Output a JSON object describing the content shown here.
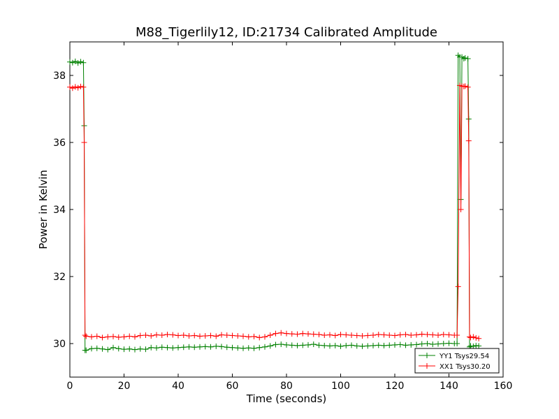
{
  "chart_data": {
    "type": "line",
    "title": "M88_Tigerlily12, ID:21734 Calibrated Amplitude",
    "xlabel": "Time (seconds)",
    "ylabel": "Power in Kelvin",
    "xlim": [
      0,
      160
    ],
    "ylim": [
      29,
      39
    ],
    "xticks": [
      0,
      20,
      40,
      60,
      80,
      100,
      120,
      140,
      160
    ],
    "yticks": [
      30,
      32,
      34,
      36,
      38
    ],
    "grid": false,
    "legend_position": "lower-right",
    "marker": "plus",
    "series": [
      {
        "name": "YY1 Tsys29.54",
        "color": "#008000",
        "x": [
          0,
          1,
          2,
          3,
          4,
          5,
          5.3,
          5.6,
          6,
          8,
          10,
          12,
          14,
          16,
          18,
          20,
          22,
          24,
          26,
          28,
          30,
          32,
          34,
          36,
          38,
          40,
          42,
          44,
          46,
          48,
          50,
          52,
          54,
          56,
          58,
          60,
          62,
          64,
          66,
          68,
          70,
          72,
          74,
          76,
          78,
          80,
          82,
          84,
          86,
          88,
          90,
          92,
          94,
          96,
          98,
          100,
          102,
          104,
          106,
          108,
          110,
          112,
          114,
          116,
          118,
          120,
          122,
          124,
          126,
          128,
          130,
          132,
          134,
          136,
          138,
          140,
          142,
          143,
          143.4,
          144,
          144.4,
          144.8,
          145.5,
          146,
          147,
          147.3,
          147.6,
          148,
          149,
          150,
          151
        ],
        "y": [
          38.4,
          38.38,
          38.42,
          38.37,
          38.41,
          38.38,
          36.5,
          29.8,
          29.8,
          29.85,
          29.86,
          29.84,
          29.82,
          29.88,
          29.85,
          29.83,
          29.84,
          29.82,
          29.84,
          29.83,
          29.88,
          29.87,
          29.89,
          29.88,
          29.87,
          29.88,
          29.89,
          29.9,
          29.89,
          29.9,
          29.91,
          29.9,
          29.92,
          29.91,
          29.89,
          29.88,
          29.87,
          29.86,
          29.87,
          29.86,
          29.88,
          29.9,
          29.93,
          29.97,
          29.98,
          29.96,
          29.95,
          29.94,
          29.95,
          29.96,
          29.98,
          29.95,
          29.94,
          29.93,
          29.94,
          29.92,
          29.94,
          29.95,
          29.93,
          29.92,
          29.93,
          29.94,
          29.95,
          29.94,
          29.95,
          29.96,
          29.97,
          29.95,
          29.96,
          29.97,
          29.99,
          30.0,
          29.98,
          29.99,
          30.0,
          30.01,
          30.0,
          30.0,
          38.6,
          38.55,
          34.3,
          38.55,
          38.5,
          38.52,
          38.5,
          36.7,
          29.9,
          29.93,
          29.92,
          29.94,
          29.93
        ]
      },
      {
        "name": "XX1 Tsys30.20",
        "color": "#ff0000",
        "x": [
          0,
          1,
          2,
          3,
          4,
          5,
          5.3,
          5.6,
          6,
          8,
          10,
          12,
          14,
          16,
          18,
          20,
          22,
          24,
          26,
          28,
          30,
          32,
          34,
          36,
          38,
          40,
          42,
          44,
          46,
          48,
          50,
          52,
          54,
          56,
          58,
          60,
          62,
          64,
          66,
          68,
          70,
          72,
          74,
          76,
          78,
          80,
          82,
          84,
          86,
          88,
          90,
          92,
          94,
          96,
          98,
          100,
          102,
          104,
          106,
          108,
          110,
          112,
          114,
          116,
          118,
          120,
          122,
          124,
          126,
          128,
          130,
          132,
          134,
          136,
          138,
          140,
          142,
          143,
          143.4,
          144,
          144.4,
          144.8,
          145.5,
          146,
          147,
          147.3,
          147.6,
          148,
          149,
          150,
          151
        ],
        "y": [
          37.65,
          37.62,
          37.66,
          37.63,
          37.67,
          37.65,
          36.0,
          30.25,
          30.22,
          30.2,
          30.22,
          30.18,
          30.2,
          30.21,
          30.19,
          30.2,
          30.22,
          30.2,
          30.24,
          30.25,
          30.23,
          30.26,
          30.25,
          30.27,
          30.26,
          30.24,
          30.25,
          30.23,
          30.24,
          30.22,
          30.23,
          30.24,
          30.22,
          30.26,
          30.25,
          30.24,
          30.23,
          30.22,
          30.2,
          30.21,
          30.18,
          30.2,
          30.25,
          30.3,
          30.32,
          30.3,
          30.29,
          30.28,
          30.3,
          30.29,
          30.28,
          30.27,
          30.25,
          30.26,
          30.24,
          30.27,
          30.26,
          30.25,
          30.24,
          30.23,
          30.24,
          30.25,
          30.27,
          30.26,
          30.25,
          30.24,
          30.26,
          30.27,
          30.25,
          30.26,
          30.28,
          30.27,
          30.26,
          30.25,
          30.27,
          30.26,
          30.25,
          30.25,
          31.7,
          37.7,
          34.0,
          37.68,
          37.67,
          37.68,
          37.65,
          36.05,
          30.2,
          30.18,
          30.2,
          30.17,
          30.15
        ]
      }
    ]
  }
}
